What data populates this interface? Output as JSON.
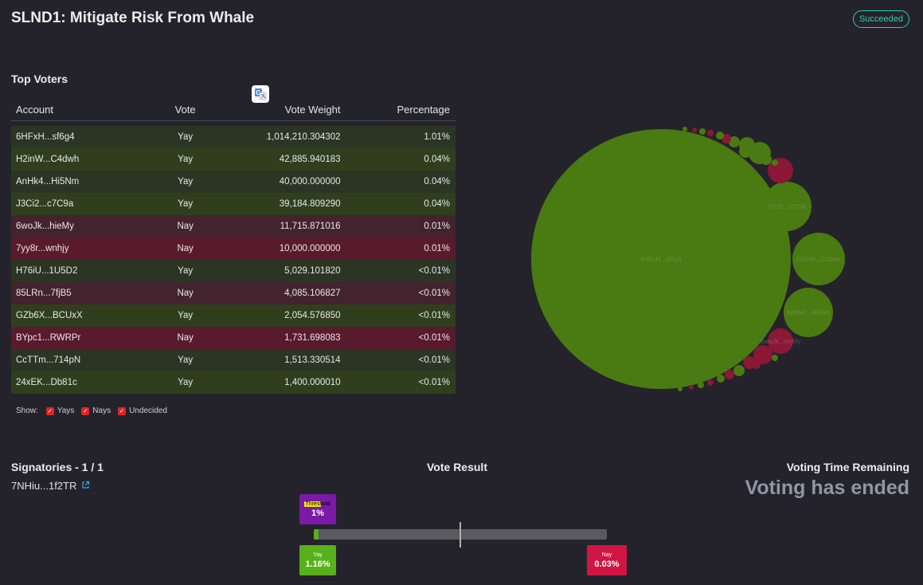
{
  "page": {
    "title": "SLND1: Mitigate Risk From Whale",
    "status": "Succeeded",
    "status_color": "#2fd0a8"
  },
  "top_voters": {
    "title": "Top Voters",
    "columns": [
      "Account",
      "Vote",
      "Vote Weight",
      "Percentage"
    ],
    "rows": [
      {
        "account": "6HFxH...sf6g4",
        "vote": "Yay",
        "weight": "1,014,210.304302",
        "pct": "1.01%"
      },
      {
        "account": "H2inW...C4dwh",
        "vote": "Yay",
        "weight": "42,885.940183",
        "pct": "0.04%"
      },
      {
        "account": "AnHk4...Hi5Nm",
        "vote": "Yay",
        "weight": "40,000.000000",
        "pct": "0.04%"
      },
      {
        "account": "J3Ci2...c7C9a",
        "vote": "Yay",
        "weight": "39,184.809290",
        "pct": "0.04%"
      },
      {
        "account": "6woJk...hieMy",
        "vote": "Nay",
        "weight": "11,715.871016",
        "pct": "0.01%"
      },
      {
        "account": "7yy8r...wnhjy",
        "vote": "Nay",
        "weight": "10,000.000000",
        "pct": "0.01%"
      },
      {
        "account": "H76iU...1U5D2",
        "vote": "Yay",
        "weight": "5,029.101820",
        "pct": "<0.01%"
      },
      {
        "account": "85LRn...7fjB5",
        "vote": "Nay",
        "weight": "4,085.106827",
        "pct": "<0.01%"
      },
      {
        "account": "GZb6X...BCUxX",
        "vote": "Yay",
        "weight": "2,054.576850",
        "pct": "<0.01%"
      },
      {
        "account": "BYpc1...RWRPr",
        "vote": "Nay",
        "weight": "1,731.698083",
        "pct": "<0.01%"
      },
      {
        "account": "CcTTm...714pN",
        "vote": "Yay",
        "weight": "1,513.330514",
        "pct": "<0.01%"
      },
      {
        "account": "24xEK...Db81c",
        "vote": "Yay",
        "weight": "1,400.000010",
        "pct": "<0.01%"
      }
    ],
    "filters": {
      "label": "Show:",
      "options": [
        {
          "label": "Yays",
          "checked": true
        },
        {
          "label": "Nays",
          "checked": true
        },
        {
          "label": "Undecided",
          "checked": true
        }
      ]
    },
    "translate_icon": "translate-icon"
  },
  "bubbles": {
    "yay_color": "#4a7a12",
    "nay_color": "#8a1836",
    "labels": [
      "6HFxH...sf6g4",
      "J3Ci2...c7C9a",
      "H2inW...C4dwh",
      "AnHk4...Hi5Nm",
      "6woJk...hieMy"
    ]
  },
  "signatories": {
    "title": "Signatories - 1 / 1",
    "items": [
      {
        "id": "7NHiu...1f2TR",
        "icon": "external-link-icon"
      }
    ]
  },
  "vote_result": {
    "title": "Vote Result",
    "threshold_label": "Threshold",
    "threshold_value": "1%",
    "yay_label": "Yay",
    "yay_value": "1.16%",
    "nay_label": "Nay",
    "nay_value": "0.03%",
    "yay_fraction": 0.0116,
    "yay_color": "#58b01b",
    "nay_color": "#d01544",
    "threshold_color": "#7a1aa5"
  },
  "voting_time": {
    "title": "Voting Time Remaining",
    "value": "Voting has ended"
  }
}
